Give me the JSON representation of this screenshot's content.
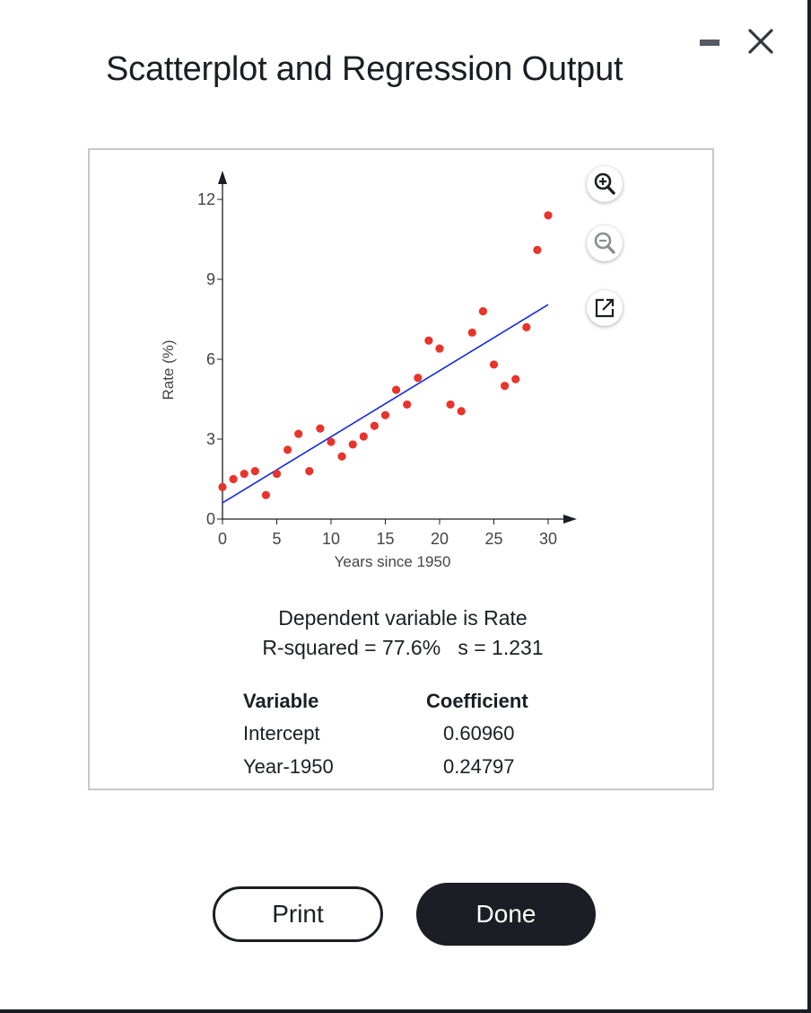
{
  "window": {
    "title": "Scatterplot and Regression Output",
    "minimize_icon": "minimize-icon",
    "close_icon": "close-icon"
  },
  "chart_tools": {
    "zoom_in_icon": "zoom-in-icon",
    "zoom_out_icon": "zoom-out-icon",
    "popout_icon": "popout-icon"
  },
  "chart_data": {
    "type": "scatter",
    "xlabel": "Years since 1950",
    "ylabel": "Rate (%)",
    "xlim": [
      0,
      30
    ],
    "ylim": [
      0,
      12
    ],
    "x_ticks": [
      0,
      5,
      10,
      15,
      20,
      25,
      30
    ],
    "y_ticks": [
      0,
      3,
      6,
      9,
      12
    ],
    "points": [
      [
        0,
        1.2
      ],
      [
        1,
        1.5
      ],
      [
        2,
        1.7
      ],
      [
        3,
        1.8
      ],
      [
        4,
        0.9
      ],
      [
        5,
        1.7
      ],
      [
        6,
        2.6
      ],
      [
        7,
        3.2
      ],
      [
        8,
        1.8
      ],
      [
        9,
        3.4
      ],
      [
        10,
        2.9
      ],
      [
        11,
        2.35
      ],
      [
        12,
        2.8
      ],
      [
        13,
        3.1
      ],
      [
        14,
        3.5
      ],
      [
        15,
        3.9
      ],
      [
        16,
        4.85
      ],
      [
        17,
        4.3
      ],
      [
        18,
        5.3
      ],
      [
        19,
        6.7
      ],
      [
        20,
        6.4
      ],
      [
        21,
        4.3
      ],
      [
        22,
        4.05
      ],
      [
        23,
        7.0
      ],
      [
        24,
        7.8
      ],
      [
        25,
        5.8
      ],
      [
        26,
        5.0
      ],
      [
        27,
        5.25
      ],
      [
        28,
        7.2
      ],
      [
        29,
        10.1
      ],
      [
        30,
        11.4
      ]
    ],
    "regression": {
      "intercept": 0.6096,
      "slope": 0.24797
    },
    "point_color": "#e8342a",
    "line_color": "#1428e6"
  },
  "output": {
    "dependent_line": "Dependent variable is Rate",
    "stats_line": "R-squared = 77.6%   s = 1.231",
    "table": {
      "headers": [
        "Variable",
        "Coefficient"
      ],
      "rows": [
        [
          "Intercept",
          "0.60960"
        ],
        [
          "Year-1950",
          "0.24797"
        ]
      ]
    }
  },
  "buttons": {
    "print_label": "Print",
    "done_label": "Done"
  }
}
